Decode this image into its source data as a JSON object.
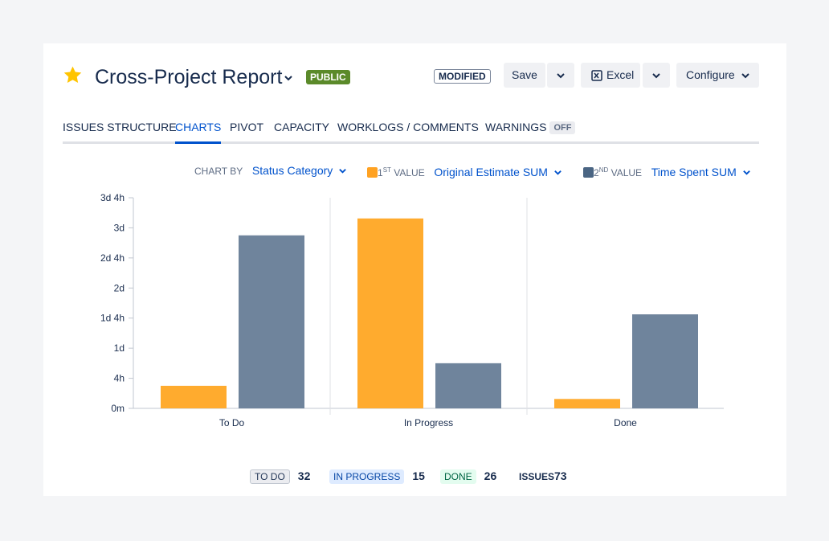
{
  "header": {
    "title": "Cross-Project Report",
    "visibility_badge": "PUBLIC",
    "modified_badge": "MODIFIED",
    "save_label": "Save",
    "excel_label": "Excel",
    "configure_label": "Configure"
  },
  "tabs": [
    {
      "label": "ISSUES STRUCTURE",
      "active": false
    },
    {
      "label": "CHARTS",
      "active": true
    },
    {
      "label": "PIVOT",
      "active": false
    },
    {
      "label": "CAPACITY",
      "active": false
    },
    {
      "label": "WORKLOGS / COMMENTS",
      "active": false
    },
    {
      "label": "WARNINGS",
      "active": false,
      "badge": "OFF"
    }
  ],
  "controls": {
    "chart_by_label": "CHART BY",
    "chart_by_value": "Status Category",
    "first_value_ordinal": "1",
    "first_value_sup": "ST",
    "first_value_label": "VALUE",
    "first_value_value": "Original Estimate SUM",
    "second_value_ordinal": "2",
    "second_value_sup": "ND",
    "second_value_label": "VALUE",
    "second_value_value": "Time Spent SUM"
  },
  "colors": {
    "first": "#ffab2e",
    "second": "#6f849c",
    "accent": "#0052cc",
    "public_badge": "#5b8a2a"
  },
  "chart_data": {
    "type": "bar",
    "categories": [
      "To Do",
      "In Progress",
      "Done"
    ],
    "series": [
      {
        "values": [
          6,
          50.5,
          2.5
        ]
      },
      {
        "values": [
          46,
          12,
          25
        ]
      }
    ],
    "yticks": [
      {
        "v": 0,
        "label": "0m"
      },
      {
        "v": 8,
        "label": "4h"
      },
      {
        "v": 16,
        "label": "1d"
      },
      {
        "v": 24,
        "label": "1d 4h"
      },
      {
        "v": 32,
        "label": "2d"
      },
      {
        "v": 40,
        "label": "2d 4h"
      },
      {
        "v": 48,
        "label": "3d"
      },
      {
        "v": 56,
        "label": "3d 4h"
      }
    ],
    "ylim": [
      0,
      56
    ],
    "xlabel": "",
    "ylabel": ""
  },
  "footer": {
    "todo_label": "TO DO",
    "todo_count": "32",
    "inprogress_label": "IN PROGRESS",
    "inprogress_count": "15",
    "done_label": "DONE",
    "done_count": "26",
    "issues_label": "ISSUES",
    "issues_count": "73"
  }
}
